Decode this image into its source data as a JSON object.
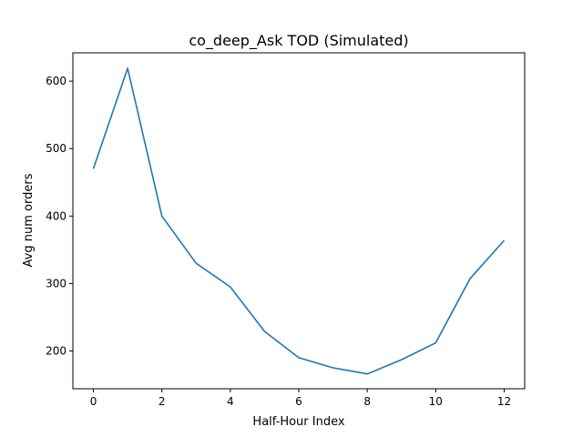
{
  "chart_data": {
    "type": "line",
    "title": "co_deep_Ask TOD (Simulated)",
    "xlabel": "Half-Hour Index",
    "ylabel": "Avg num orders",
    "xlim": [
      -0.6,
      12.6
    ],
    "ylim": [
      144,
      642
    ],
    "xticks": [
      0,
      2,
      4,
      6,
      8,
      10,
      12
    ],
    "yticks": [
      200,
      300,
      400,
      500,
      600
    ],
    "grid": false,
    "legend": "none",
    "series": [
      {
        "color": "#1f77b4",
        "x": [
          0,
          1,
          2,
          3,
          4,
          5,
          6,
          7,
          8,
          9,
          10,
          11,
          12
        ],
        "y": [
          470,
          619,
          400,
          330,
          295,
          229,
          190,
          175,
          166,
          187,
          212,
          307,
          364
        ]
      }
    ]
  }
}
